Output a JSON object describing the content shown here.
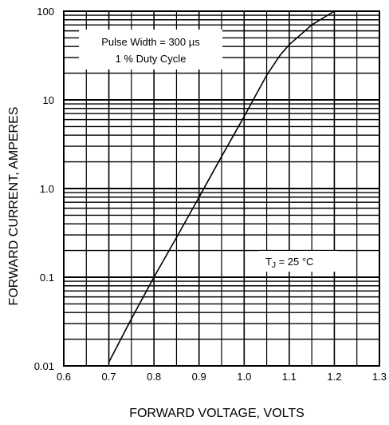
{
  "chart_data": {
    "type": "line",
    "title": "",
    "xlabel": "FORWARD VOLTAGE, VOLTS",
    "ylabel": "FORWARD CURRENT, AMPERES",
    "xlim": [
      0.6,
      1.3
    ],
    "ylim": [
      0.01,
      100
    ],
    "yscale": "log",
    "grid": true,
    "x_ticks": [
      "0.6",
      "0.7",
      "0.8",
      "0.9",
      "1.0",
      "1.1",
      "1.2",
      "1.3"
    ],
    "y_ticks": [
      "0.01",
      "0.1",
      "1.0",
      "10",
      "100"
    ],
    "series": [
      {
        "x": [
          0.7,
          0.75,
          0.8,
          0.85,
          0.9,
          0.95,
          1.0,
          1.05,
          1.08,
          1.1,
          1.15,
          1.2
        ],
        "y": [
          0.011,
          0.034,
          0.1,
          0.28,
          0.8,
          2.3,
          6.5,
          19,
          32,
          42,
          70,
          100
        ]
      }
    ],
    "annotations": {
      "pulse_line1": "Pulse Width = 300 µs",
      "pulse_line2": "1 % Duty Cycle",
      "temp_main": "T",
      "temp_sub": "J",
      "temp_rest": " = 25 °C"
    }
  }
}
